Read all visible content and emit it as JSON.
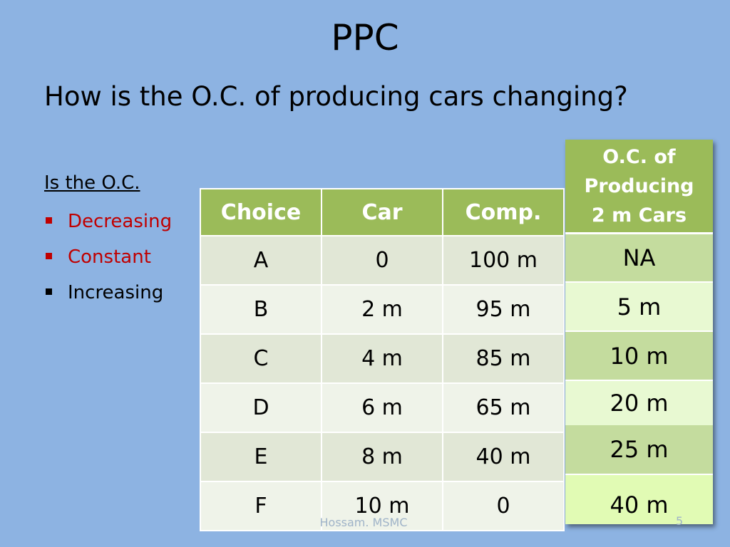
{
  "slide": {
    "title": "PPC",
    "subtitle": "How is the O.C. of producing cars changing?",
    "lead": "Is the O.C.",
    "bullets": [
      {
        "text": "Decreasing",
        "color": "#c00000"
      },
      {
        "text": "Constant",
        "color": "#c00000"
      },
      {
        "text": "Increasing",
        "color": "#000000"
      }
    ],
    "footer": "Hossam. MSMC",
    "page_number": "5"
  },
  "table": {
    "headers": [
      "Choice",
      "Car",
      "Comp."
    ],
    "rows": [
      [
        "A",
        "0",
        "100 m"
      ],
      [
        "B",
        "2 m",
        "95 m"
      ],
      [
        "C",
        "4 m",
        "85 m"
      ],
      [
        "D",
        "6 m",
        "65 m"
      ],
      [
        "E",
        "8 m",
        "40 m"
      ],
      [
        "F",
        "10 m",
        "0"
      ]
    ]
  },
  "oc_column": {
    "header_lines": [
      "O.C. of",
      "Producing",
      "2 m Cars"
    ],
    "values": [
      "NA",
      "5 m",
      "10 m",
      "20 m",
      "25 m",
      "40 m"
    ]
  },
  "colors": {
    "background": "#8db3e2",
    "header_green": "#9bbb59",
    "accent_red": "#c00000"
  }
}
